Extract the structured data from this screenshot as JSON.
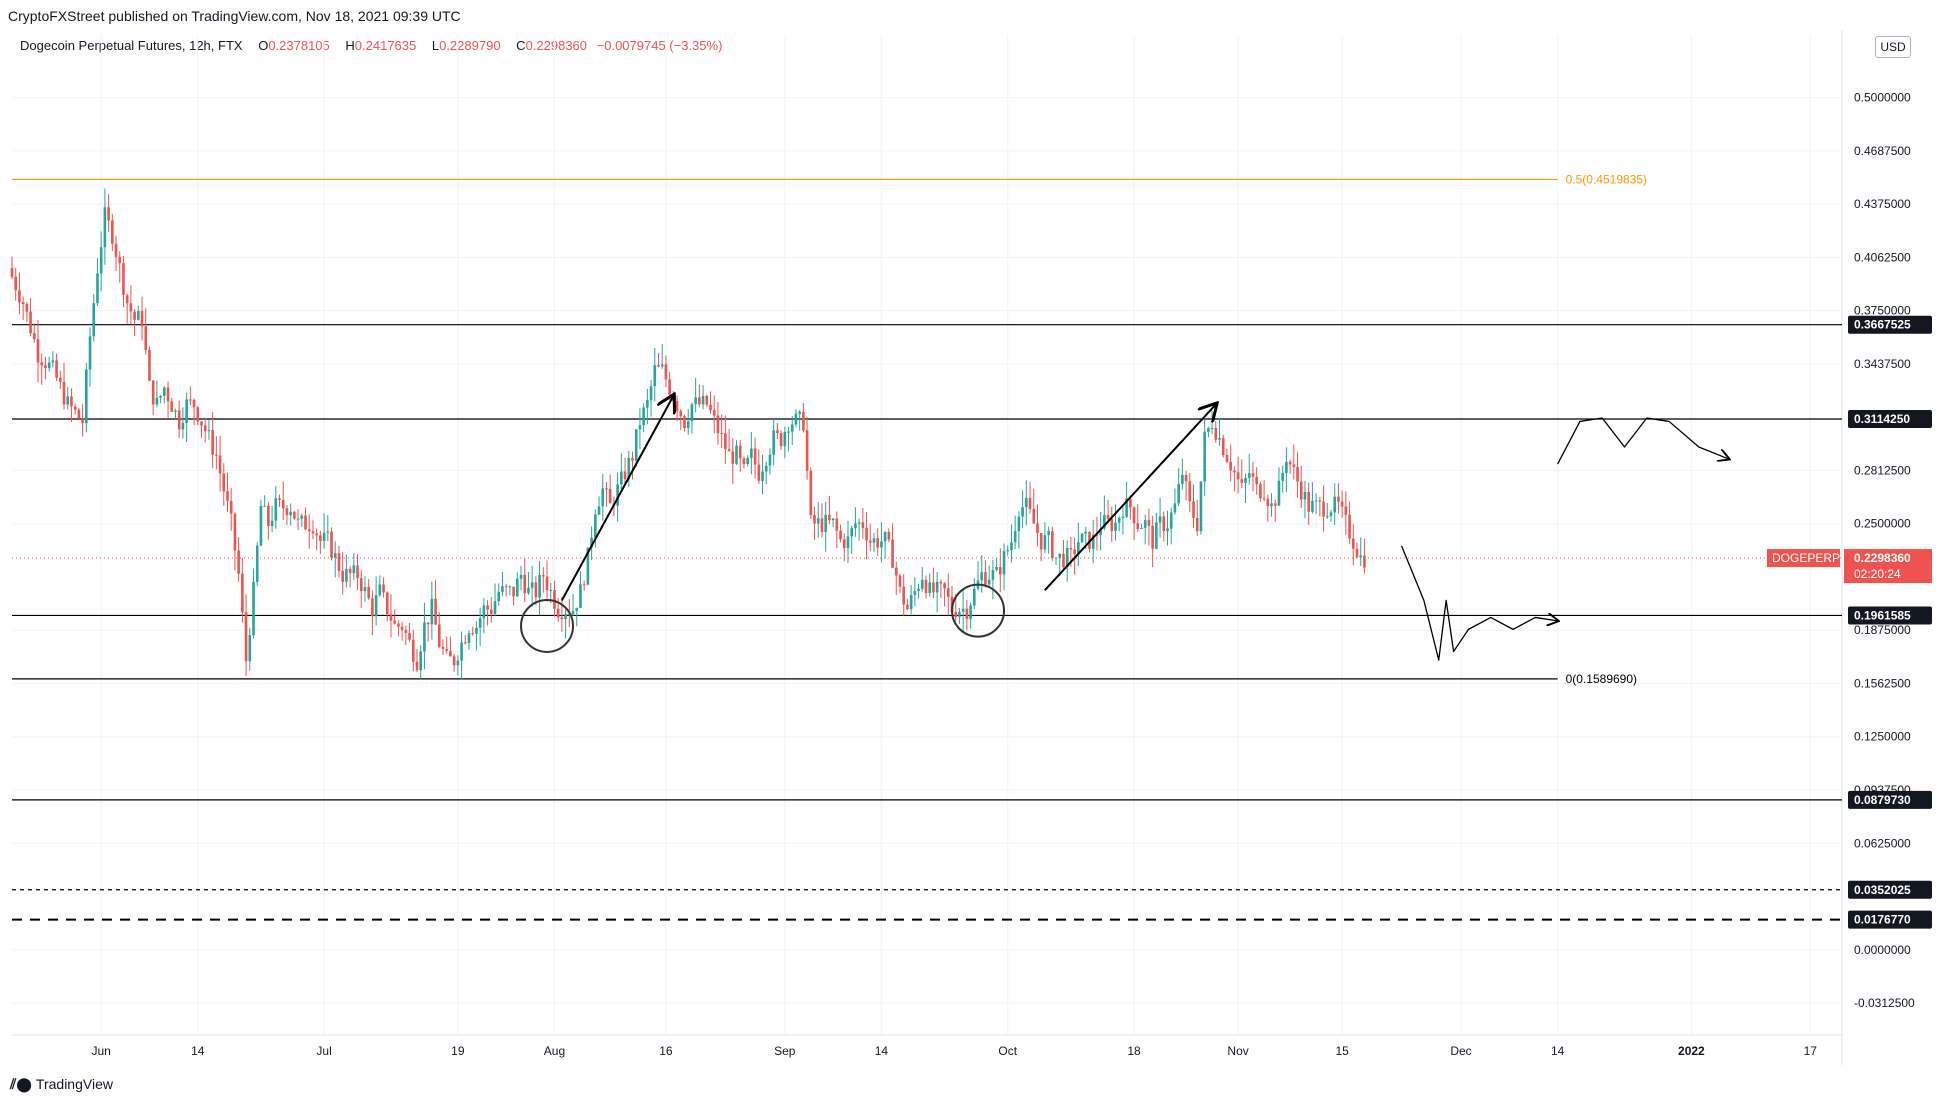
{
  "publisher_line": "CryptoFXStreet published on TradingView.com, Nov 18, 2021 09:39 UTC",
  "legend": {
    "symbol": "Dogecoin Perpetual Futures, 12h, FTX",
    "o_label": "O",
    "o_value": "0.2378105",
    "h_label": "H",
    "h_value": "0.2417635",
    "l_label": "L",
    "l_value": "0.2289790",
    "c_label": "C",
    "c_value": "0.2298360",
    "change": "−0.0079745 (−3.35%)"
  },
  "currency": "USD",
  "brand": "TradingView",
  "colors": {
    "up": "#26a69a",
    "down": "#ef5350",
    "fib": "#ff9800",
    "line": "#000000",
    "grid": "#f0f3fa",
    "axis_text": "#131722",
    "price_tag": "#ef5350"
  },
  "chart_data": {
    "type": "candlestick",
    "symbol_tag": "DOGEPERP",
    "last_price": "0.2298360",
    "countdown": "02:20:24",
    "y_range": [
      -0.05,
      0.525
    ],
    "y_ticks": [
      {
        "v": 0.5,
        "label": "0.5000000"
      },
      {
        "v": 0.46875,
        "label": "0.4687500"
      },
      {
        "v": 0.4375,
        "label": "0.4375000"
      },
      {
        "v": 0.40625,
        "label": "0.4062500"
      },
      {
        "v": 0.375,
        "label": "0.3750000"
      },
      {
        "v": 0.34375,
        "label": "0.3437500"
      },
      {
        "v": 0.28125,
        "label": "0.2812500"
      },
      {
        "v": 0.25,
        "label": "0.2500000"
      },
      {
        "v": 0.1875,
        "label": "0.1875000"
      },
      {
        "v": 0.15625,
        "label": "0.1562500"
      },
      {
        "v": 0.125,
        "label": "0.1250000"
      },
      {
        "v": 0.09375,
        "label": "0.0937500"
      },
      {
        "v": 0.0625,
        "label": "0.0625000"
      },
      {
        "v": 0.0,
        "label": "0.0000000"
      },
      {
        "v": -0.03125,
        "label": "-0.0312500"
      }
    ],
    "x_ticks": [
      {
        "d": 0,
        "label": "Jun",
        "bold": false
      },
      {
        "d": 13,
        "label": "14",
        "bold": false
      },
      {
        "d": 30,
        "label": "Jul",
        "bold": false
      },
      {
        "d": 48,
        "label": "19",
        "bold": false
      },
      {
        "d": 61,
        "label": "Aug",
        "bold": false
      },
      {
        "d": 76,
        "label": "16",
        "bold": false
      },
      {
        "d": 92,
        "label": "Sep",
        "bold": false
      },
      {
        "d": 105,
        "label": "14",
        "bold": false
      },
      {
        "d": 122,
        "label": "Oct",
        "bold": false
      },
      {
        "d": 139,
        "label": "18",
        "bold": false
      },
      {
        "d": 153,
        "label": "Nov",
        "bold": false
      },
      {
        "d": 167,
        "label": "15",
        "bold": false
      },
      {
        "d": 183,
        "label": "Dec",
        "bold": false
      },
      {
        "d": 196,
        "label": "14",
        "bold": false
      },
      {
        "d": 214,
        "label": "2022",
        "bold": true
      },
      {
        "d": 230,
        "label": "17",
        "bold": false
      }
    ],
    "x_range_days": [
      -12,
      234
    ],
    "horizontal_levels": [
      {
        "v": 0.3667525,
        "label": "0.3667525",
        "style": "solid"
      },
      {
        "v": 0.311425,
        "label": "0.3114250",
        "style": "solid"
      },
      {
        "v": 0.1961585,
        "label": "0.1961585",
        "style": "solid"
      },
      {
        "v": 0.087973,
        "label": "0.0879730",
        "style": "solid"
      },
      {
        "v": 0.0352025,
        "label": "0.0352025",
        "style": "dotted"
      },
      {
        "v": 0.017677,
        "label": "0.0176770",
        "style": "dashed"
      }
    ],
    "fib_levels": [
      {
        "v": 0.4519835,
        "label": "0.5(0.4519835)",
        "color": "#ff9800"
      },
      {
        "v": 0.158969,
        "label": "0(0.1589690)",
        "color": "#000000"
      }
    ],
    "path_points": [
      [
        -12,
        0.4
      ],
      [
        -10,
        0.38
      ],
      [
        -8,
        0.35
      ],
      [
        -6,
        0.34
      ],
      [
        -4,
        0.32
      ],
      [
        -2,
        0.31
      ],
      [
        -1,
        0.36
      ],
      [
        0,
        0.4
      ],
      [
        1,
        0.43
      ],
      [
        2,
        0.42
      ],
      [
        3,
        0.4
      ],
      [
        4,
        0.38
      ],
      [
        5,
        0.37
      ],
      [
        6,
        0.37
      ],
      [
        7,
        0.33
      ],
      [
        8,
        0.32
      ],
      [
        9,
        0.33
      ],
      [
        10,
        0.32
      ],
      [
        11,
        0.31
      ],
      [
        12,
        0.32
      ],
      [
        13,
        0.32
      ],
      [
        14,
        0.31
      ],
      [
        15,
        0.3
      ],
      [
        16,
        0.29
      ],
      [
        17,
        0.27
      ],
      [
        18,
        0.25
      ],
      [
        19,
        0.22
      ],
      [
        20,
        0.17
      ],
      [
        21,
        0.21
      ],
      [
        22,
        0.26
      ],
      [
        23,
        0.25
      ],
      [
        24,
        0.26
      ],
      [
        25,
        0.26
      ],
      [
        26,
        0.26
      ],
      [
        27,
        0.25
      ],
      [
        28,
        0.25
      ],
      [
        29,
        0.25
      ],
      [
        30,
        0.24
      ],
      [
        31,
        0.24
      ],
      [
        32,
        0.23
      ],
      [
        33,
        0.22
      ],
      [
        34,
        0.22
      ],
      [
        35,
        0.22
      ],
      [
        36,
        0.21
      ],
      [
        37,
        0.2
      ],
      [
        38,
        0.21
      ],
      [
        39,
        0.2
      ],
      [
        40,
        0.19
      ],
      [
        41,
        0.19
      ],
      [
        42,
        0.18
      ],
      [
        43,
        0.17
      ],
      [
        44,
        0.19
      ],
      [
        45,
        0.2
      ],
      [
        46,
        0.18
      ],
      [
        47,
        0.17
      ],
      [
        48,
        0.17
      ],
      [
        49,
        0.18
      ],
      [
        50,
        0.19
      ],
      [
        51,
        0.19
      ],
      [
        52,
        0.2
      ],
      [
        53,
        0.2
      ],
      [
        54,
        0.21
      ],
      [
        55,
        0.21
      ],
      [
        56,
        0.21
      ],
      [
        57,
        0.22
      ],
      [
        58,
        0.21
      ],
      [
        59,
        0.21
      ],
      [
        60,
        0.22
      ],
      [
        61,
        0.21
      ],
      [
        62,
        0.2
      ],
      [
        63,
        0.2
      ],
      [
        64,
        0.2
      ],
      [
        65,
        0.21
      ],
      [
        66,
        0.23
      ],
      [
        67,
        0.26
      ],
      [
        68,
        0.27
      ],
      [
        69,
        0.26
      ],
      [
        70,
        0.27
      ],
      [
        71,
        0.28
      ],
      [
        72,
        0.29
      ],
      [
        73,
        0.31
      ],
      [
        74,
        0.32
      ],
      [
        75,
        0.34
      ],
      [
        76,
        0.34
      ],
      [
        77,
        0.33
      ],
      [
        78,
        0.32
      ],
      [
        79,
        0.31
      ],
      [
        80,
        0.32
      ],
      [
        81,
        0.32
      ],
      [
        82,
        0.32
      ],
      [
        83,
        0.31
      ],
      [
        84,
        0.3
      ],
      [
        85,
        0.29
      ],
      [
        86,
        0.29
      ],
      [
        87,
        0.28
      ],
      [
        88,
        0.29
      ],
      [
        89,
        0.28
      ],
      [
        90,
        0.29
      ],
      [
        91,
        0.3
      ],
      [
        92,
        0.3
      ],
      [
        93,
        0.31
      ],
      [
        94,
        0.31
      ],
      [
        95,
        0.31
      ],
      [
        96,
        0.25
      ],
      [
        97,
        0.25
      ],
      [
        98,
        0.25
      ],
      [
        99,
        0.25
      ],
      [
        100,
        0.24
      ],
      [
        101,
        0.24
      ],
      [
        102,
        0.25
      ],
      [
        103,
        0.25
      ],
      [
        104,
        0.24
      ],
      [
        105,
        0.24
      ],
      [
        106,
        0.24
      ],
      [
        107,
        0.23
      ],
      [
        108,
        0.21
      ],
      [
        109,
        0.2
      ],
      [
        110,
        0.21
      ],
      [
        111,
        0.22
      ],
      [
        112,
        0.21
      ],
      [
        113,
        0.21
      ],
      [
        114,
        0.21
      ],
      [
        115,
        0.2
      ],
      [
        116,
        0.2
      ],
      [
        117,
        0.2
      ],
      [
        118,
        0.21
      ],
      [
        119,
        0.22
      ],
      [
        120,
        0.22
      ],
      [
        121,
        0.22
      ],
      [
        122,
        0.23
      ],
      [
        123,
        0.24
      ],
      [
        124,
        0.26
      ],
      [
        125,
        0.26
      ],
      [
        126,
        0.25
      ],
      [
        127,
        0.24
      ],
      [
        128,
        0.24
      ],
      [
        129,
        0.23
      ],
      [
        130,
        0.23
      ],
      [
        131,
        0.23
      ],
      [
        132,
        0.24
      ],
      [
        133,
        0.24
      ],
      [
        134,
        0.24
      ],
      [
        135,
        0.25
      ],
      [
        136,
        0.25
      ],
      [
        137,
        0.25
      ],
      [
        138,
        0.26
      ],
      [
        139,
        0.26
      ],
      [
        140,
        0.25
      ],
      [
        141,
        0.25
      ],
      [
        142,
        0.24
      ],
      [
        143,
        0.25
      ],
      [
        144,
        0.25
      ],
      [
        145,
        0.26
      ],
      [
        146,
        0.28
      ],
      [
        147,
        0.26
      ],
      [
        148,
        0.25
      ],
      [
        149,
        0.3
      ],
      [
        150,
        0.31
      ],
      [
        151,
        0.3
      ],
      [
        152,
        0.29
      ],
      [
        153,
        0.28
      ],
      [
        154,
        0.27
      ],
      [
        155,
        0.28
      ],
      [
        156,
        0.27
      ],
      [
        157,
        0.27
      ],
      [
        158,
        0.26
      ],
      [
        159,
        0.27
      ],
      [
        160,
        0.29
      ],
      [
        161,
        0.28
      ],
      [
        162,
        0.27
      ],
      [
        163,
        0.26
      ],
      [
        164,
        0.26
      ],
      [
        165,
        0.26
      ],
      [
        166,
        0.26
      ],
      [
        167,
        0.26
      ],
      [
        168,
        0.25
      ],
      [
        169,
        0.24
      ],
      [
        170,
        0.23
      ]
    ],
    "arrows": [
      {
        "from": [
          62,
          0.205
        ],
        "to": [
          77,
          0.325
        ]
      },
      {
        "from": [
          127,
          0.211
        ],
        "to": [
          150,
          0.32
        ]
      }
    ],
    "circles": [
      {
        "d": 60,
        "v": 0.19
      },
      {
        "d": 118,
        "v": 0.199
      }
    ],
    "projection_up": [
      [
        196,
        0.285
      ],
      [
        199,
        0.31
      ],
      [
        202,
        0.312
      ],
      [
        205,
        0.295
      ],
      [
        208,
        0.312
      ],
      [
        211,
        0.31
      ],
      [
        215,
        0.295
      ],
      [
        219,
        0.288
      ]
    ],
    "projection_down": [
      [
        175,
        0.237
      ],
      [
        178,
        0.205
      ],
      [
        180,
        0.17
      ],
      [
        181,
        0.205
      ],
      [
        182,
        0.175
      ],
      [
        184,
        0.188
      ],
      [
        187,
        0.195
      ],
      [
        190,
        0.188
      ],
      [
        193,
        0.195
      ],
      [
        196,
        0.193
      ]
    ]
  }
}
